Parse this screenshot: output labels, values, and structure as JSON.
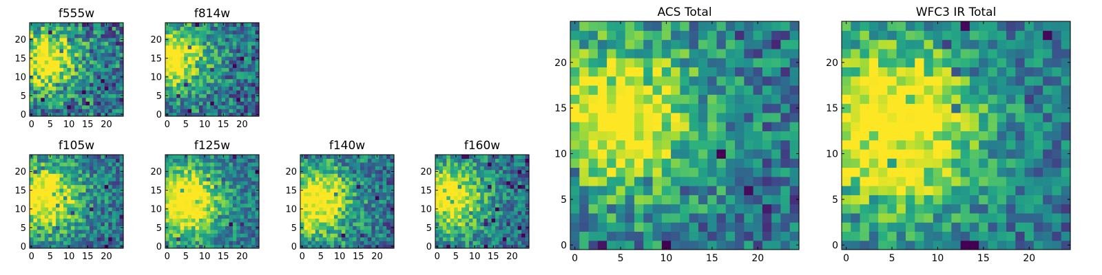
{
  "chart_data": [
    {
      "type": "heatmap",
      "title": "f555w",
      "grid_size": 25,
      "x_ticks": [
        0,
        5,
        10,
        15,
        20
      ],
      "y_ticks": [
        0,
        5,
        10,
        15,
        20
      ],
      "colormap": "viridis",
      "peak": [
        4,
        15
      ],
      "spread": 4.5,
      "noise": 0.32,
      "seed": 11
    },
    {
      "type": "heatmap",
      "title": "f814w",
      "grid_size": 25,
      "x_ticks": [
        0,
        5,
        10,
        15,
        20
      ],
      "y_ticks": [
        0,
        5,
        10,
        15,
        20
      ],
      "colormap": "viridis",
      "peak": [
        2,
        15
      ],
      "spread": 5.0,
      "noise": 0.28,
      "seed": 23
    },
    {
      "type": "heatmap",
      "title": "f105w",
      "grid_size": 25,
      "x_ticks": [
        0,
        5,
        10,
        15,
        20
      ],
      "y_ticks": [
        0,
        5,
        10,
        15,
        20
      ],
      "colormap": "viridis",
      "peak": [
        4,
        13
      ],
      "spread": 5.5,
      "noise": 0.25,
      "seed": 37
    },
    {
      "type": "heatmap",
      "title": "f125w",
      "grid_size": 25,
      "x_ticks": [
        0,
        5,
        10,
        15,
        20
      ],
      "y_ticks": [
        0,
        5,
        10,
        15,
        20
      ],
      "colormap": "viridis",
      "peak": [
        5,
        12
      ],
      "spread": 6.0,
      "noise": 0.22,
      "seed": 41
    },
    {
      "type": "heatmap",
      "title": "f140w",
      "grid_size": 25,
      "x_ticks": [
        0,
        5,
        10,
        15,
        20
      ],
      "y_ticks": [
        0,
        5,
        10,
        15,
        20
      ],
      "colormap": "viridis",
      "peak": [
        4,
        12
      ],
      "spread": 5.5,
      "noise": 0.26,
      "seed": 53
    },
    {
      "type": "heatmap",
      "title": "f160w",
      "grid_size": 25,
      "x_ticks": [
        0,
        5,
        10,
        15,
        20
      ],
      "y_ticks": [
        0,
        5,
        10,
        15,
        20
      ],
      "colormap": "viridis",
      "peak": [
        3,
        13
      ],
      "spread": 5.5,
      "noise": 0.24,
      "seed": 67
    },
    {
      "type": "heatmap",
      "title": "ACS Total",
      "grid_size": 25,
      "x_ticks": [
        0,
        5,
        10,
        15,
        20
      ],
      "y_ticks": [
        0,
        5,
        10,
        15,
        20
      ],
      "colormap": "viridis",
      "peak": [
        5,
        14
      ],
      "spread": 5.0,
      "noise": 0.26,
      "seed": 79
    },
    {
      "type": "heatmap",
      "title": "WFC3 IR Total",
      "grid_size": 25,
      "x_ticks": [
        0,
        5,
        10,
        15,
        20
      ],
      "y_ticks": [
        0,
        5,
        10,
        15,
        20
      ],
      "colormap": "viridis",
      "peak": [
        5,
        13
      ],
      "spread": 6.0,
      "noise": 0.22,
      "seed": 97
    }
  ]
}
